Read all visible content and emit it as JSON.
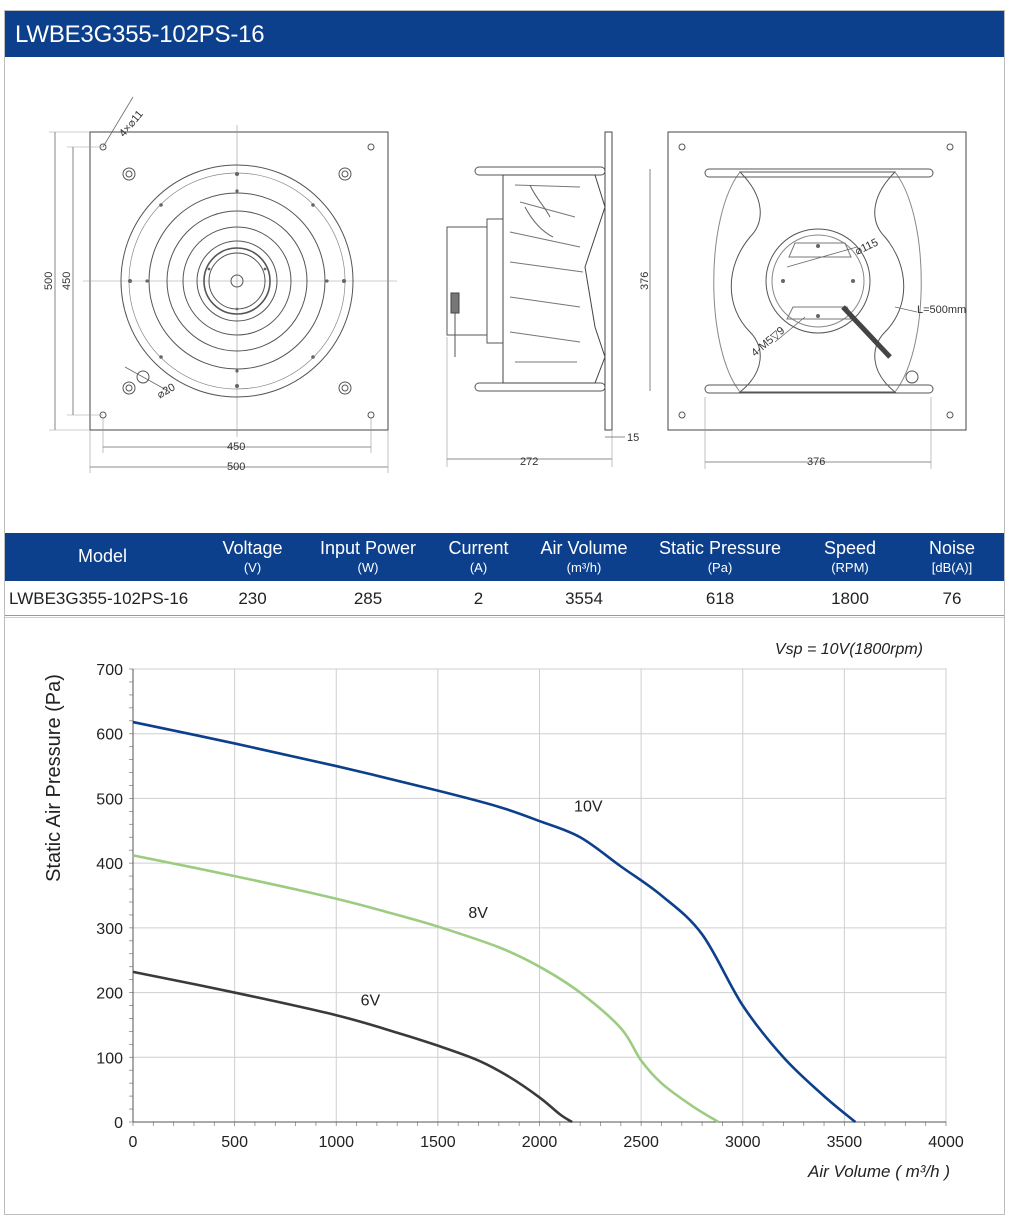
{
  "header": {
    "title": "LWBE3G355-102PS-16"
  },
  "drawing": {
    "front": {
      "hole_label": "4×⌀11",
      "hole20_label": "⌀20",
      "dim_500": "500",
      "dim_450": "450",
      "dim_500_v": "500",
      "dim_450_v": "450"
    },
    "side": {
      "dim_272": "272",
      "dim_15": "15",
      "dim_376_v": "376"
    },
    "back": {
      "dim_115": "⌀115",
      "m5_label": "4-M5▽9",
      "cable_label": "L=500mm",
      "dim_376": "376"
    }
  },
  "table": {
    "headers": [
      {
        "label": "Model",
        "unit": ""
      },
      {
        "label": "Voltage",
        "unit": "(V)"
      },
      {
        "label": "Input Power",
        "unit": "(W)"
      },
      {
        "label": "Current",
        "unit": "(A)"
      },
      {
        "label": "Air Volume",
        "unit": "(m³/h)"
      },
      {
        "label": "Static Pressure",
        "unit": "(Pa)"
      },
      {
        "label": "Speed",
        "unit": "(RPM)"
      },
      {
        "label": "Noise",
        "unit": "[dB(A)]"
      }
    ],
    "row": [
      "LWBE3G355-102PS-16",
      "230",
      "285",
      "2",
      "3554",
      "618",
      "1800",
      "76"
    ]
  },
  "chart_data": {
    "type": "line",
    "annotation": "Vsp = 10V(1800rpm)",
    "xlabel": "Air Volume ( m³/h )",
    "ylabel": "Static Air Pressure  (Pa)",
    "xlim": [
      0,
      4000
    ],
    "ylim": [
      0,
      700
    ],
    "x_ticks": [
      0,
      500,
      1000,
      1500,
      2000,
      2500,
      3000,
      3500,
      4000
    ],
    "y_ticks": [
      0,
      100,
      200,
      300,
      400,
      500,
      600,
      700
    ],
    "grid": true,
    "series": [
      {
        "name": "10V",
        "color": "#0c3f8c",
        "points": [
          [
            0,
            618
          ],
          [
            500,
            585
          ],
          [
            1000,
            550
          ],
          [
            1500,
            512
          ],
          [
            1800,
            487
          ],
          [
            2000,
            465
          ],
          [
            2200,
            440
          ],
          [
            2400,
            395
          ],
          [
            2600,
            350
          ],
          [
            2800,
            290
          ],
          [
            3000,
            180
          ],
          [
            3200,
            100
          ],
          [
            3400,
            40
          ],
          [
            3554,
            0
          ]
        ]
      },
      {
        "name": "8V",
        "color": "#9ccc82",
        "points": [
          [
            0,
            412
          ],
          [
            500,
            380
          ],
          [
            1000,
            345
          ],
          [
            1300,
            320
          ],
          [
            1500,
            302
          ],
          [
            1800,
            270
          ],
          [
            2000,
            240
          ],
          [
            2200,
            200
          ],
          [
            2400,
            145
          ],
          [
            2500,
            95
          ],
          [
            2600,
            60
          ],
          [
            2750,
            25
          ],
          [
            2880,
            0
          ]
        ]
      },
      {
        "name": "6V",
        "color": "#3a3a3a",
        "points": [
          [
            0,
            232
          ],
          [
            500,
            200
          ],
          [
            1000,
            165
          ],
          [
            1300,
            138
          ],
          [
            1500,
            118
          ],
          [
            1700,
            95
          ],
          [
            1850,
            70
          ],
          [
            2000,
            38
          ],
          [
            2100,
            12
          ],
          [
            2160,
            0
          ]
        ]
      }
    ],
    "series_labels": [
      {
        "text": "10V",
        "x": 2170,
        "y": 480
      },
      {
        "text": "8V",
        "x": 1650,
        "y": 315
      },
      {
        "text": "6V",
        "x": 1120,
        "y": 180
      }
    ]
  }
}
